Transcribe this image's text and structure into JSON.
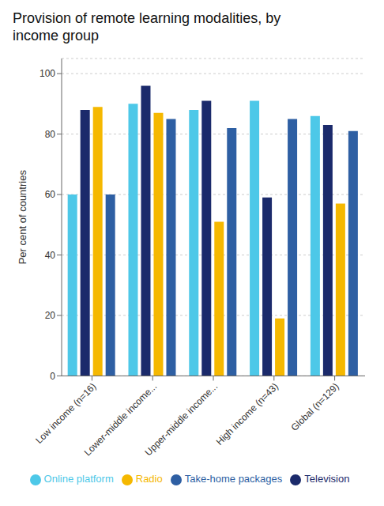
{
  "chart_data": {
    "type": "bar",
    "title": "Provision of remote learning modalities, by\nincome group",
    "categories": [
      "Low income (n=16)",
      "Lower-middle income...",
      "Upper-middle income...",
      "High income (n=43)",
      "Global (n=129)"
    ],
    "series": [
      {
        "name": "Online platform",
        "color": "#4DC8E8",
        "values": [
          60,
          90,
          88,
          91,
          86
        ]
      },
      {
        "name": "Television",
        "color": "#1B2A6B",
        "values": [
          88,
          96,
          91,
          59,
          83
        ]
      },
      {
        "name": "Radio",
        "color": "#F5B800",
        "values": [
          89,
          87,
          51,
          19,
          57
        ]
      },
      {
        "name": "Take-home packages",
        "color": "#2E5FA3",
        "values": [
          60,
          85,
          82,
          85,
          81
        ]
      }
    ],
    "ylabel": "Per cent of countries",
    "ylim": [
      0,
      105
    ],
    "yticks": [
      0,
      20,
      40,
      60,
      80,
      100
    ],
    "grid": true,
    "legend": "bottom"
  }
}
